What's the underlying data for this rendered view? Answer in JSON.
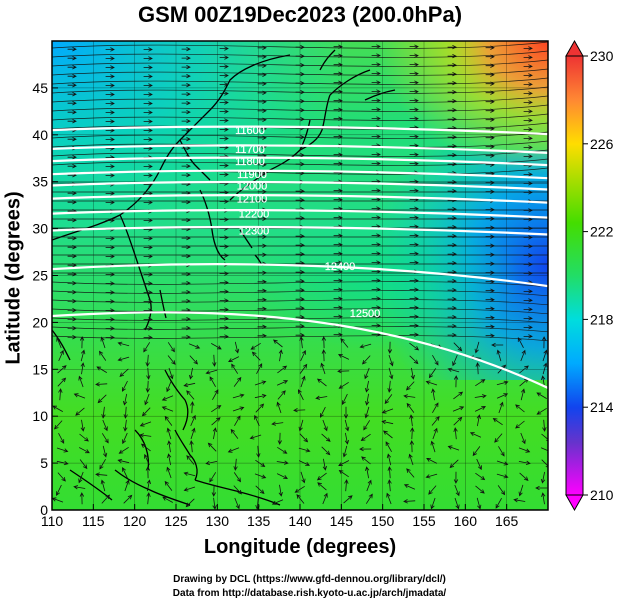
{
  "title": "GSM 00Z19Dec2023 (200.0hPa)",
  "axes": {
    "xlabel": "Longitude (degrees)",
    "ylabel": "Latitude  (degrees)",
    "x_ticks": [
      "110",
      "115",
      "120",
      "125",
      "130",
      "135",
      "140",
      "145",
      "150",
      "155",
      "160",
      "165"
    ],
    "y_ticks": [
      "0",
      "5",
      "10",
      "15",
      "20",
      "25",
      "30",
      "35",
      "40",
      "45"
    ]
  },
  "colorbar": {
    "ticks": [
      "230",
      "226",
      "222",
      "218",
      "214",
      "210"
    ]
  },
  "contour_labels": [
    "11600",
    "11700",
    "11800",
    "11900",
    "12000",
    "12100",
    "12200",
    "12300",
    "12400",
    "12500"
  ],
  "credits": {
    "line1": "Drawing by DCL (https://www.gfd-dennou.org/library/dcl/)",
    "line2": "Data from http://database.rish.kyoto-u.ac.jp/arch/jmadata/"
  },
  "chart_data": {
    "type": "heatmap",
    "title": "GSM 00Z19Dec2023 (200.0hPa)",
    "xlabel": "Longitude (degrees)",
    "ylabel": "Latitude  (degrees)",
    "xlim": [
      110,
      170
    ],
    "ylim": [
      0,
      50
    ],
    "x_ticks": [
      110,
      115,
      120,
      125,
      130,
      135,
      140,
      145,
      150,
      155,
      160,
      165
    ],
    "y_ticks": [
      0,
      5,
      10,
      15,
      20,
      25,
      30,
      35,
      40,
      45
    ],
    "colorbar_range": [
      210,
      230
    ],
    "colorbar_ticks": [
      210,
      214,
      218,
      222,
      226,
      230
    ],
    "colormap": [
      "#ff00ff",
      "#3333cc",
      "#0066ff",
      "#00ccee",
      "#22dd44",
      "#55dd00",
      "#ffdd00",
      "#ff6633",
      "#ee2222"
    ],
    "contours": [
      {
        "label": "11600",
        "lat": 40.5
      },
      {
        "label": "11700",
        "lat": 38.5
      },
      {
        "label": "11800",
        "lat": 37.2
      },
      {
        "label": "11900",
        "lat": 35.8
      },
      {
        "label": "12000",
        "lat": 34.6
      },
      {
        "label": "12100",
        "lat": 33.2
      },
      {
        "label": "12200",
        "lat": 31.6
      },
      {
        "label": "12300",
        "lat": 29.8
      },
      {
        "label": "12400",
        "lat": 26.0
      },
      {
        "label": "12500",
        "lat": 21.0
      }
    ],
    "features": "streamlines of wind; geopotential height contours; temperature shading"
  }
}
